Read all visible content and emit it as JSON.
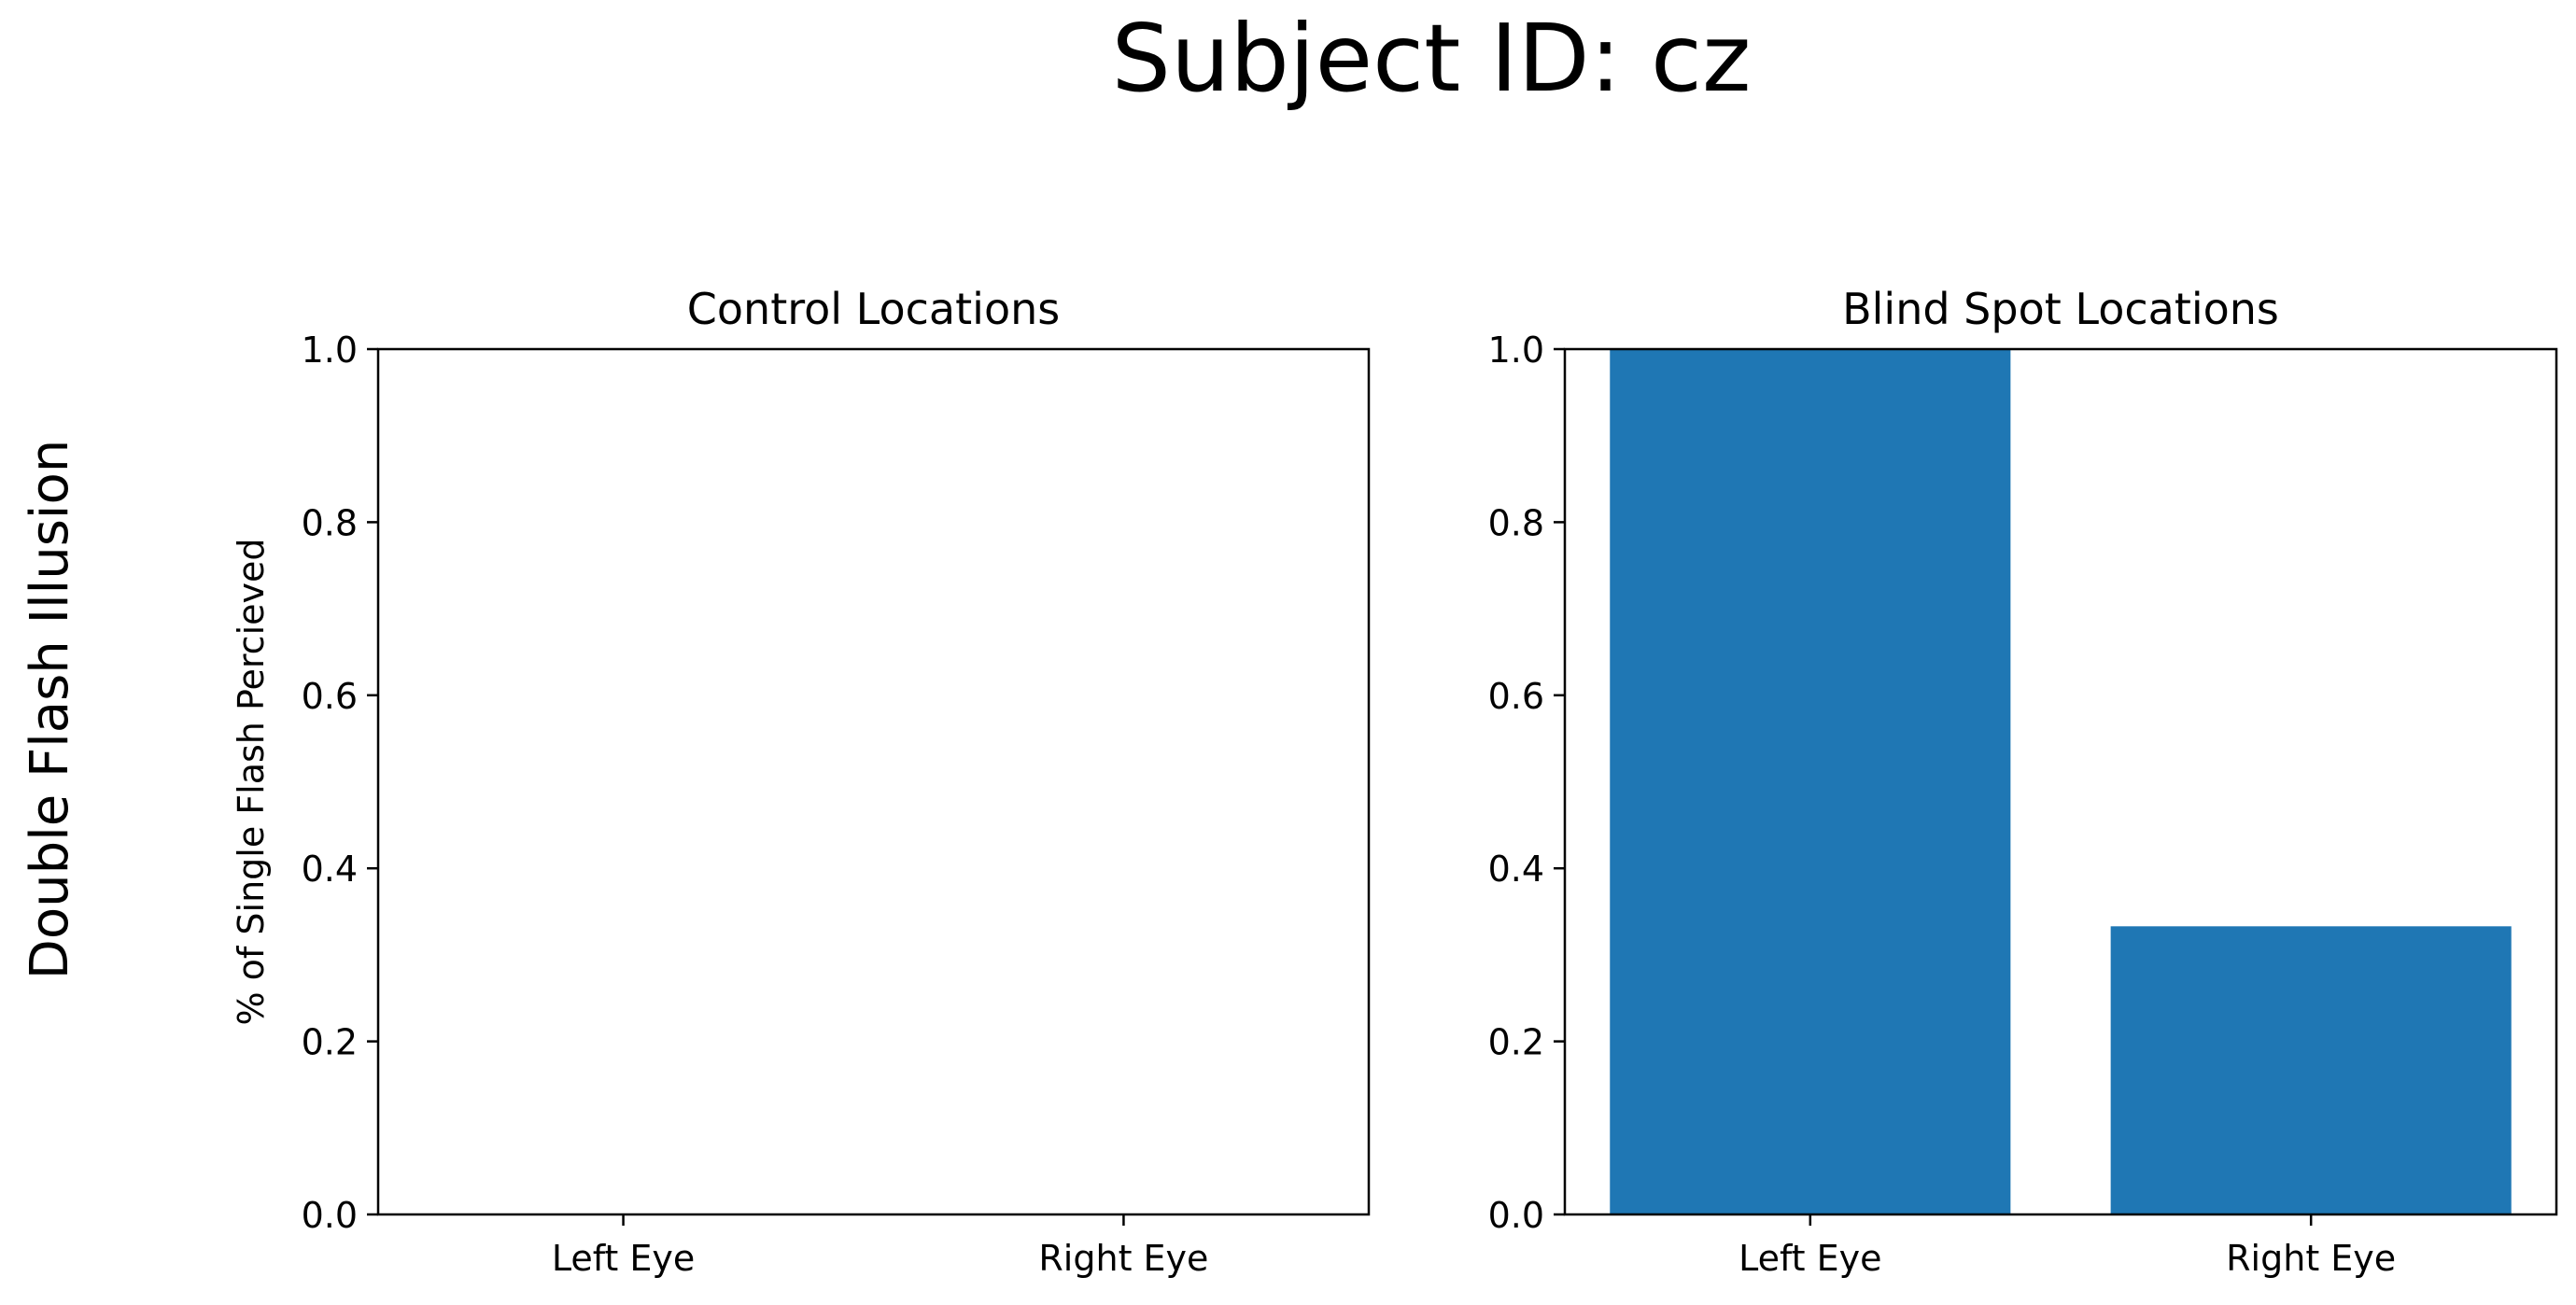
{
  "figure": {
    "suptitle": "Subject ID: cz",
    "row_label": "Double Flash Illusion"
  },
  "chart_data": [
    {
      "type": "bar",
      "title": "Control Locations",
      "ylabel": "% of Single Flash Percieved",
      "xlabel": "",
      "categories": [
        "Left Eye",
        "Right Eye"
      ],
      "values": [
        0,
        0
      ],
      "ylim": [
        0,
        1.0
      ],
      "yticks": [
        "0.0",
        "0.2",
        "0.4",
        "0.6",
        "0.8",
        "1.0"
      ],
      "bar_color": "#1f77b4",
      "grid": false
    },
    {
      "type": "bar",
      "title": "Blind Spot Locations",
      "ylabel": "",
      "xlabel": "",
      "categories": [
        "Left Eye",
        "Right Eye"
      ],
      "values": [
        1.0,
        0.333
      ],
      "ylim": [
        0,
        1.0
      ],
      "yticks": [
        "0.0",
        "0.2",
        "0.4",
        "0.6",
        "0.8",
        "1.0"
      ],
      "bar_color": "#1f77b4",
      "grid": false
    }
  ]
}
